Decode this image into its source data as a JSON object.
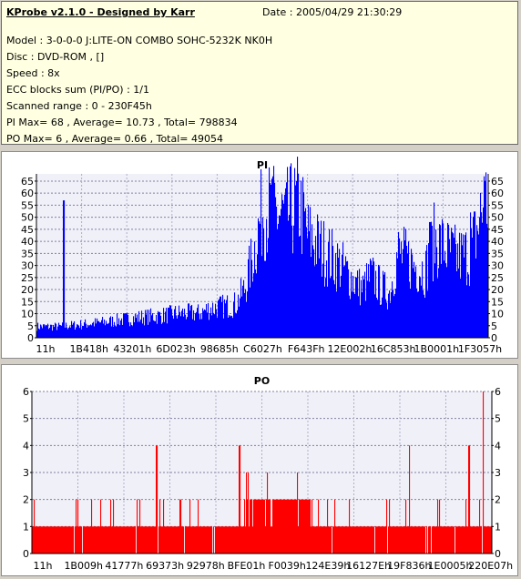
{
  "info": {
    "title": "KProbe v2.1.0 - Designed by Karr",
    "date": "Date : 2005/04/29 21:30:29",
    "lines": [
      "Model : 3-0-0-0 J:LITE-ON COMBO SOHC-5232K NK0H",
      "Disc : DVD-ROM ,  []",
      "Speed : 8x",
      "ECC blocks sum (PI/PO) : 1/1",
      "Scanned range : 0 - 230F45h",
      "PI Max= 68 , Average= 10.73 , Total= 798834",
      "PO Max= 6 , Average= 0.66 , Total= 49054"
    ]
  },
  "chart_data": [
    {
      "type": "bar",
      "title": "PI",
      "color": "#0000ff",
      "ylim": [
        0,
        68
      ],
      "yticks": [
        0,
        5,
        10,
        15,
        20,
        25,
        30,
        35,
        40,
        45,
        50,
        55,
        60,
        65
      ],
      "xtick_labels": [
        "11h",
        "1B418h",
        "43201h",
        "6D023h",
        "98685h",
        "C6027h",
        "F643Fh",
        "12E002h",
        "16C853h",
        "1B0001h",
        "1F3057h"
      ],
      "grid": true,
      "profile": [
        [
          0.0,
          5
        ],
        [
          0.05,
          5
        ],
        [
          0.1,
          6
        ],
        [
          0.15,
          7
        ],
        [
          0.22,
          9
        ],
        [
          0.28,
          10
        ],
        [
          0.31,
          11
        ],
        [
          0.36,
          11
        ],
        [
          0.38,
          13
        ],
        [
          0.44,
          15
        ],
        [
          0.46,
          22
        ],
        [
          0.48,
          38
        ],
        [
          0.5,
          58
        ],
        [
          0.55,
          54
        ],
        [
          0.58,
          60
        ],
        [
          0.6,
          46
        ],
        [
          0.64,
          38
        ],
        [
          0.67,
          33
        ],
        [
          0.7,
          26
        ],
        [
          0.72,
          22
        ],
        [
          0.74,
          28
        ],
        [
          0.76,
          23
        ],
        [
          0.78,
          20
        ],
        [
          0.8,
          38
        ],
        [
          0.84,
          32
        ],
        [
          0.86,
          30
        ],
        [
          0.88,
          44
        ],
        [
          0.93,
          36
        ],
        [
          0.96,
          38
        ],
        [
          0.99,
          60
        ],
        [
          1.0,
          62
        ]
      ],
      "spikes": [
        [
          0.06,
          57
        ],
        [
          0.52,
          66
        ],
        [
          0.55,
          62
        ],
        [
          0.87,
          48
        ],
        [
          0.96,
          52
        ],
        [
          0.99,
          67
        ]
      ]
    },
    {
      "type": "bar",
      "title": "PO",
      "color": "#ff0000",
      "ylim": [
        0,
        6
      ],
      "yticks": [
        0,
        1,
        2,
        3,
        4,
        5,
        6
      ],
      "xtick_labels": [
        "11h",
        "1B009h",
        "41777h",
        "69373h",
        "92978h",
        "BFE01h",
        "F0039h",
        "124E39h",
        "16127Eh",
        "19F836h",
        "1E0005h",
        "220E07h"
      ],
      "grid": true,
      "profile": [
        [
          0.0,
          1
        ],
        [
          0.46,
          1
        ],
        [
          0.47,
          2
        ],
        [
          0.6,
          2
        ],
        [
          0.61,
          1
        ],
        [
          1.0,
          1
        ]
      ],
      "spikes": [
        [
          0.27,
          4
        ],
        [
          0.45,
          4
        ],
        [
          0.82,
          4
        ],
        [
          0.95,
          4
        ],
        [
          0.98,
          6
        ]
      ]
    }
  ]
}
